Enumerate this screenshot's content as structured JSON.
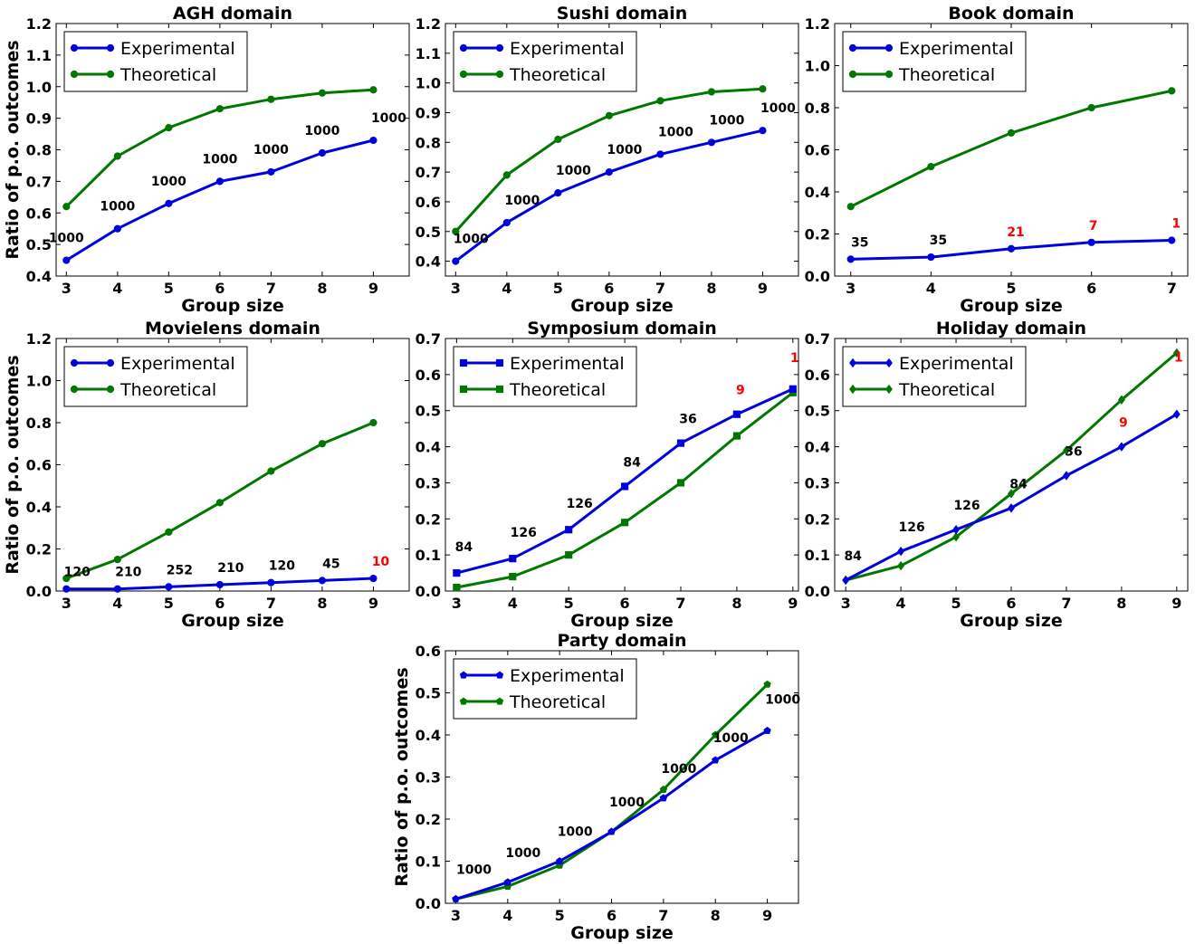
{
  "figure": {
    "ylabel_left": "Ratio of p.o. outcomes"
  },
  "chart_data": [
    {
      "type": "line",
      "title": "AGH domain",
      "xlabel": "Group size",
      "ylabel": "Ratio of p.o. outcomes",
      "x": [
        3,
        4,
        5,
        6,
        7,
        8,
        9
      ],
      "xlim": [
        2.8,
        9.7
      ],
      "ylim": [
        0.4,
        1.2
      ],
      "xticks": [
        "3",
        "4",
        "5",
        "6",
        "7",
        "8",
        "9"
      ],
      "yticks": [
        "0.4",
        "0.5",
        "0.6",
        "0.7",
        "0.8",
        "0.9",
        "1.0",
        "1.1",
        "1.2"
      ],
      "legend_position": "top-left",
      "marker": "circle",
      "series": [
        {
          "name": "Experimental",
          "color": "#0000dd",
          "values": [
            0.45,
            0.55,
            0.63,
            0.7,
            0.73,
            0.79,
            0.83
          ]
        },
        {
          "name": "Theoretical",
          "color": "#007700",
          "values": [
            0.62,
            0.78,
            0.87,
            0.93,
            0.96,
            0.98,
            0.99
          ]
        }
      ],
      "annotations": [
        {
          "x": 3,
          "text": "1000",
          "color": "#000000"
        },
        {
          "x": 4,
          "text": "1000",
          "color": "#000000"
        },
        {
          "x": 5,
          "text": "1000",
          "color": "#000000"
        },
        {
          "x": 6,
          "text": "1000",
          "color": "#000000"
        },
        {
          "x": 7,
          "text": "1000",
          "color": "#000000"
        },
        {
          "x": 8,
          "text": "1000",
          "color": "#000000"
        },
        {
          "x": 9,
          "text": "1000",
          "color": "#000000"
        }
      ]
    },
    {
      "type": "line",
      "title": "Sushi domain",
      "xlabel": "Group size",
      "ylabel": "",
      "x": [
        3,
        4,
        5,
        6,
        7,
        8,
        9
      ],
      "xlim": [
        2.8,
        9.7
      ],
      "ylim": [
        0.35,
        1.2
      ],
      "xticks": [
        "3",
        "4",
        "5",
        "6",
        "7",
        "8",
        "9"
      ],
      "yticks": [
        "0.4",
        "0.5",
        "0.6",
        "0.7",
        "0.8",
        "0.9",
        "1.0",
        "1.1",
        "1.2"
      ],
      "legend_position": "top-left",
      "marker": "circle",
      "series": [
        {
          "name": "Experimental",
          "color": "#0000dd",
          "values": [
            0.4,
            0.53,
            0.63,
            0.7,
            0.76,
            0.8,
            0.84
          ]
        },
        {
          "name": "Theoretical",
          "color": "#007700",
          "values": [
            0.5,
            0.69,
            0.81,
            0.89,
            0.94,
            0.97,
            0.98
          ]
        }
      ],
      "annotations": [
        {
          "x": 3,
          "text": "1000",
          "color": "#000000"
        },
        {
          "x": 4,
          "text": "1000",
          "color": "#000000"
        },
        {
          "x": 5,
          "text": "1000",
          "color": "#000000"
        },
        {
          "x": 6,
          "text": "1000",
          "color": "#000000"
        },
        {
          "x": 7,
          "text": "1000",
          "color": "#000000"
        },
        {
          "x": 8,
          "text": "1000",
          "color": "#000000"
        },
        {
          "x": 9,
          "text": "1000",
          "color": "#000000"
        }
      ]
    },
    {
      "type": "line",
      "title": "Book domain",
      "xlabel": "Group size",
      "ylabel": "",
      "x": [
        3,
        4,
        5,
        6,
        7
      ],
      "xlim": [
        2.8,
        7.2
      ],
      "ylim": [
        0.0,
        1.2
      ],
      "xticks": [
        "3",
        "4",
        "5",
        "6",
        "7"
      ],
      "yticks": [
        "0.0",
        "0.2",
        "0.4",
        "0.6",
        "0.8",
        "1.0",
        "1.2"
      ],
      "legend_position": "top-left",
      "marker": "circle",
      "series": [
        {
          "name": "Experimental",
          "color": "#0000dd",
          "values": [
            0.08,
            0.09,
            0.13,
            0.16,
            0.17
          ]
        },
        {
          "name": "Theoretical",
          "color": "#007700",
          "values": [
            0.33,
            0.52,
            0.68,
            0.8,
            0.88
          ]
        }
      ],
      "annotations": [
        {
          "x": 3,
          "text": "35",
          "color": "#000000"
        },
        {
          "x": 4,
          "text": "35",
          "color": "#000000"
        },
        {
          "x": 5,
          "text": "21",
          "color": "#ff0000"
        },
        {
          "x": 6,
          "text": "7",
          "color": "#ff0000"
        },
        {
          "x": 7,
          "text": "1",
          "color": "#ff0000"
        }
      ]
    },
    {
      "type": "line",
      "title": "Movielens domain",
      "xlabel": "Group size",
      "ylabel": "Ratio of p.o. outcomes",
      "x": [
        3,
        4,
        5,
        6,
        7,
        8,
        9
      ],
      "xlim": [
        2.8,
        9.7
      ],
      "ylim": [
        0.0,
        1.2
      ],
      "xticks": [
        "3",
        "4",
        "5",
        "6",
        "7",
        "8",
        "9"
      ],
      "yticks": [
        "0.0",
        "0.2",
        "0.4",
        "0.6",
        "0.8",
        "1.0",
        "1.2"
      ],
      "legend_position": "top-left",
      "marker": "circle",
      "series": [
        {
          "name": "Experimental",
          "color": "#0000dd",
          "values": [
            0.01,
            0.01,
            0.02,
            0.03,
            0.04,
            0.05,
            0.06
          ]
        },
        {
          "name": "Theoretical",
          "color": "#007700",
          "values": [
            0.06,
            0.15,
            0.28,
            0.42,
            0.57,
            0.7,
            0.8
          ]
        }
      ],
      "annotations": [
        {
          "x": 3,
          "text": "120",
          "color": "#000000"
        },
        {
          "x": 4,
          "text": "210",
          "color": "#000000"
        },
        {
          "x": 5,
          "text": "252",
          "color": "#000000"
        },
        {
          "x": 6,
          "text": "210",
          "color": "#000000"
        },
        {
          "x": 7,
          "text": "120",
          "color": "#000000"
        },
        {
          "x": 8,
          "text": "45",
          "color": "#000000"
        },
        {
          "x": 9,
          "text": "10",
          "color": "#ff0000"
        }
      ]
    },
    {
      "type": "line",
      "title": "Symposium domain",
      "xlabel": "Group size",
      "ylabel": "",
      "x": [
        3,
        4,
        5,
        6,
        7,
        8,
        9
      ],
      "xlim": [
        2.8,
        9.1
      ],
      "ylim": [
        0.0,
        0.7
      ],
      "xticks": [
        "3",
        "4",
        "5",
        "6",
        "7",
        "8",
        "9"
      ],
      "yticks": [
        "0.0",
        "0.1",
        "0.2",
        "0.3",
        "0.4",
        "0.5",
        "0.6",
        "0.7"
      ],
      "legend_position": "top-left",
      "marker": "square",
      "series": [
        {
          "name": "Experimental",
          "color": "#0000dd",
          "values": [
            0.05,
            0.09,
            0.17,
            0.29,
            0.41,
            0.49,
            0.56
          ]
        },
        {
          "name": "Theoretical",
          "color": "#007700",
          "values": [
            0.01,
            0.04,
            0.1,
            0.19,
            0.3,
            0.43,
            0.55
          ]
        }
      ],
      "annotations": [
        {
          "x": 3,
          "text": "84",
          "color": "#000000"
        },
        {
          "x": 4,
          "text": "126",
          "color": "#000000"
        },
        {
          "x": 5,
          "text": "126",
          "color": "#000000"
        },
        {
          "x": 6,
          "text": "84",
          "color": "#000000"
        },
        {
          "x": 7,
          "text": "36",
          "color": "#000000"
        },
        {
          "x": 8,
          "text": "9",
          "color": "#ff0000"
        },
        {
          "x": 9,
          "text": "1",
          "color": "#ff0000"
        }
      ]
    },
    {
      "type": "line",
      "title": "Holiday domain",
      "xlabel": "Group size",
      "ylabel": "",
      "x": [
        3,
        4,
        5,
        6,
        7,
        8,
        9
      ],
      "xlim": [
        2.8,
        9.2
      ],
      "ylim": [
        0.0,
        0.7
      ],
      "xticks": [
        "3",
        "4",
        "5",
        "6",
        "7",
        "8",
        "9"
      ],
      "yticks": [
        "0.0",
        "0.1",
        "0.2",
        "0.3",
        "0.4",
        "0.5",
        "0.6",
        "0.7"
      ],
      "legend_position": "top-left",
      "marker": "diamond",
      "series": [
        {
          "name": "Experimental",
          "color": "#0000dd",
          "values": [
            0.03,
            0.11,
            0.17,
            0.23,
            0.32,
            0.4,
            0.49
          ]
        },
        {
          "name": "Theoretical",
          "color": "#007700",
          "values": [
            0.03,
            0.07,
            0.15,
            0.27,
            0.39,
            0.53,
            0.66
          ]
        }
      ],
      "annotations": [
        {
          "x": 3,
          "text": "84",
          "color": "#000000"
        },
        {
          "x": 4,
          "text": "126",
          "color": "#000000"
        },
        {
          "x": 5,
          "text": "126",
          "color": "#000000"
        },
        {
          "x": 6,
          "text": "84",
          "color": "#000000"
        },
        {
          "x": 7,
          "text": "36",
          "color": "#000000"
        },
        {
          "x": 8,
          "text": "9",
          "color": "#ff0000"
        },
        {
          "x": 9,
          "text": "1",
          "color": "#ff0000"
        }
      ]
    },
    {
      "type": "line",
      "title": "Party domain",
      "xlabel": "Group size",
      "ylabel": "Ratio of p.o. outcomes",
      "x": [
        3,
        4,
        5,
        6,
        7,
        8,
        9
      ],
      "xlim": [
        2.8,
        9.6
      ],
      "ylim": [
        0.0,
        0.6
      ],
      "xticks": [
        "3",
        "4",
        "5",
        "6",
        "7",
        "8",
        "9"
      ],
      "yticks": [
        "0.0",
        "0.1",
        "0.2",
        "0.3",
        "0.4",
        "0.5",
        "0.6"
      ],
      "legend_position": "top-left",
      "marker": "pentagon",
      "series": [
        {
          "name": "Experimental",
          "color": "#0000dd",
          "values": [
            0.01,
            0.05,
            0.1,
            0.17,
            0.25,
            0.34,
            0.41
          ]
        },
        {
          "name": "Theoretical",
          "color": "#007700",
          "values": [
            0.01,
            0.04,
            0.09,
            0.17,
            0.27,
            0.4,
            0.52
          ]
        }
      ],
      "annotations": [
        {
          "x": 3,
          "text": "1000",
          "color": "#000000"
        },
        {
          "x": 4,
          "text": "1000",
          "color": "#000000"
        },
        {
          "x": 5,
          "text": "1000",
          "color": "#000000"
        },
        {
          "x": 6,
          "text": "1000",
          "color": "#000000"
        },
        {
          "x": 7,
          "text": "1000",
          "color": "#000000"
        },
        {
          "x": 8,
          "text": "1000",
          "color": "#000000"
        },
        {
          "x": 9,
          "text": "1000",
          "color": "#000000"
        }
      ]
    }
  ]
}
